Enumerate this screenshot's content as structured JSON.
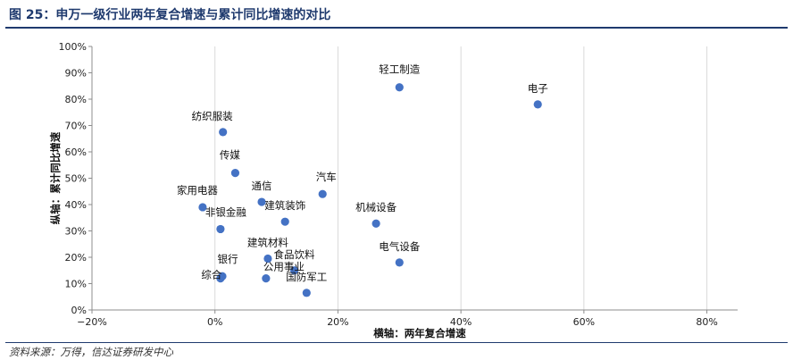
{
  "header": {
    "figure_title": "图 25：申万一级行业两年复合增速与累计同比增速的对比"
  },
  "footer": {
    "source": "资料来源：万得，信达证券研发中心"
  },
  "chart_data": {
    "type": "scatter",
    "title": "",
    "xlabel": "横轴：两年复合增速",
    "ylabel": "纵轴：累计同比增速",
    "xlim": [
      -0.2,
      0.85
    ],
    "ylim": [
      0,
      1.0
    ],
    "x_ticks": [
      -0.2,
      0,
      0.2,
      0.4,
      0.6,
      0.8
    ],
    "x_tick_labels": [
      "−20%",
      "0%",
      "20%",
      "40%",
      "60%",
      "80%"
    ],
    "y_ticks": [
      0,
      0.1,
      0.2,
      0.3,
      0.4,
      0.5,
      0.6,
      0.7,
      0.8,
      0.9,
      1.0
    ],
    "y_tick_labels": [
      "0%",
      "10%",
      "20%",
      "30%",
      "40%",
      "50%",
      "60%",
      "70%",
      "80%",
      "90%",
      "100%"
    ],
    "grid": {
      "x": true,
      "y": false
    },
    "marker_color": "#4472c4",
    "points": [
      {
        "label": "轻工制造",
        "x": 0.3,
        "y": 0.845
      },
      {
        "label": "电子",
        "x": 0.525,
        "y": 0.78
      },
      {
        "label": "纺织服装",
        "x": 0.013,
        "y": 0.675
      },
      {
        "label": "传媒",
        "x": 0.033,
        "y": 0.52
      },
      {
        "label": "汽车",
        "x": 0.175,
        "y": 0.44
      },
      {
        "label": "通信",
        "x": 0.076,
        "y": 0.41
      },
      {
        "label": "家用电器",
        "x": -0.02,
        "y": 0.39
      },
      {
        "label": "建筑装饰",
        "x": 0.114,
        "y": 0.335
      },
      {
        "label": "机械设备",
        "x": 0.262,
        "y": 0.328
      },
      {
        "label": "非银金融",
        "x": 0.009,
        "y": 0.307
      },
      {
        "label": "建筑材料",
        "x": 0.086,
        "y": 0.195
      },
      {
        "label": "电气设备",
        "x": 0.3,
        "y": 0.18
      },
      {
        "label": "食品饮料",
        "x": 0.129,
        "y": 0.15
      },
      {
        "label": "银行",
        "x": 0.012,
        "y": 0.128
      },
      {
        "label": "综合",
        "x": 0.009,
        "y": 0.12
      },
      {
        "label": "公用事业",
        "x": 0.083,
        "y": 0.12
      },
      {
        "label": "国防军工",
        "x": 0.149,
        "y": 0.065
      }
    ]
  }
}
